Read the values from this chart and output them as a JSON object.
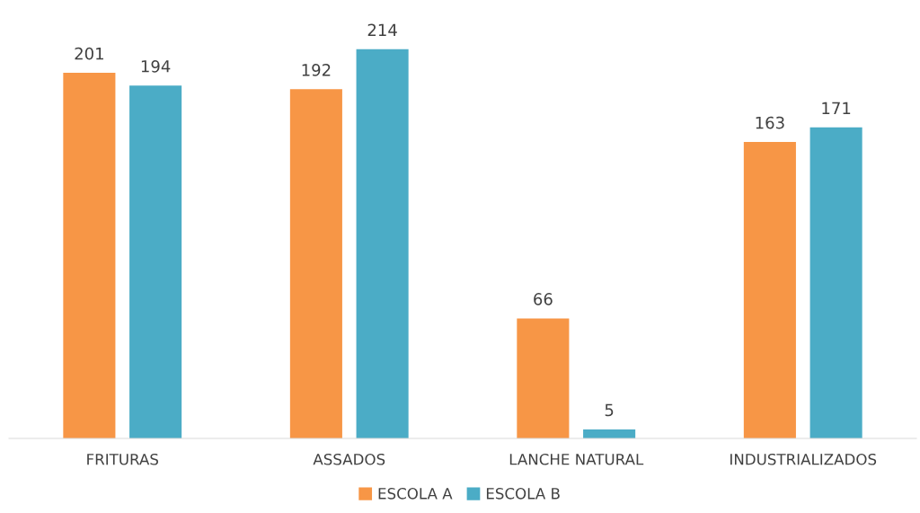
{
  "chart_data": {
    "type": "bar",
    "categories": [
      "FRITURAS",
      "ASSADOS",
      "LANCHE NATURAL",
      "INDUSTRIALIZADOS"
    ],
    "series": [
      {
        "name": "ESCOLA A",
        "color": "#f79646",
        "values": [
          201,
          192,
          66,
          163
        ]
      },
      {
        "name": "ESCOLA B",
        "color": "#4bacc6",
        "values": [
          194,
          214,
          5,
          171
        ]
      }
    ],
    "data_labels": true,
    "legend": "bottom",
    "grid": false
  }
}
